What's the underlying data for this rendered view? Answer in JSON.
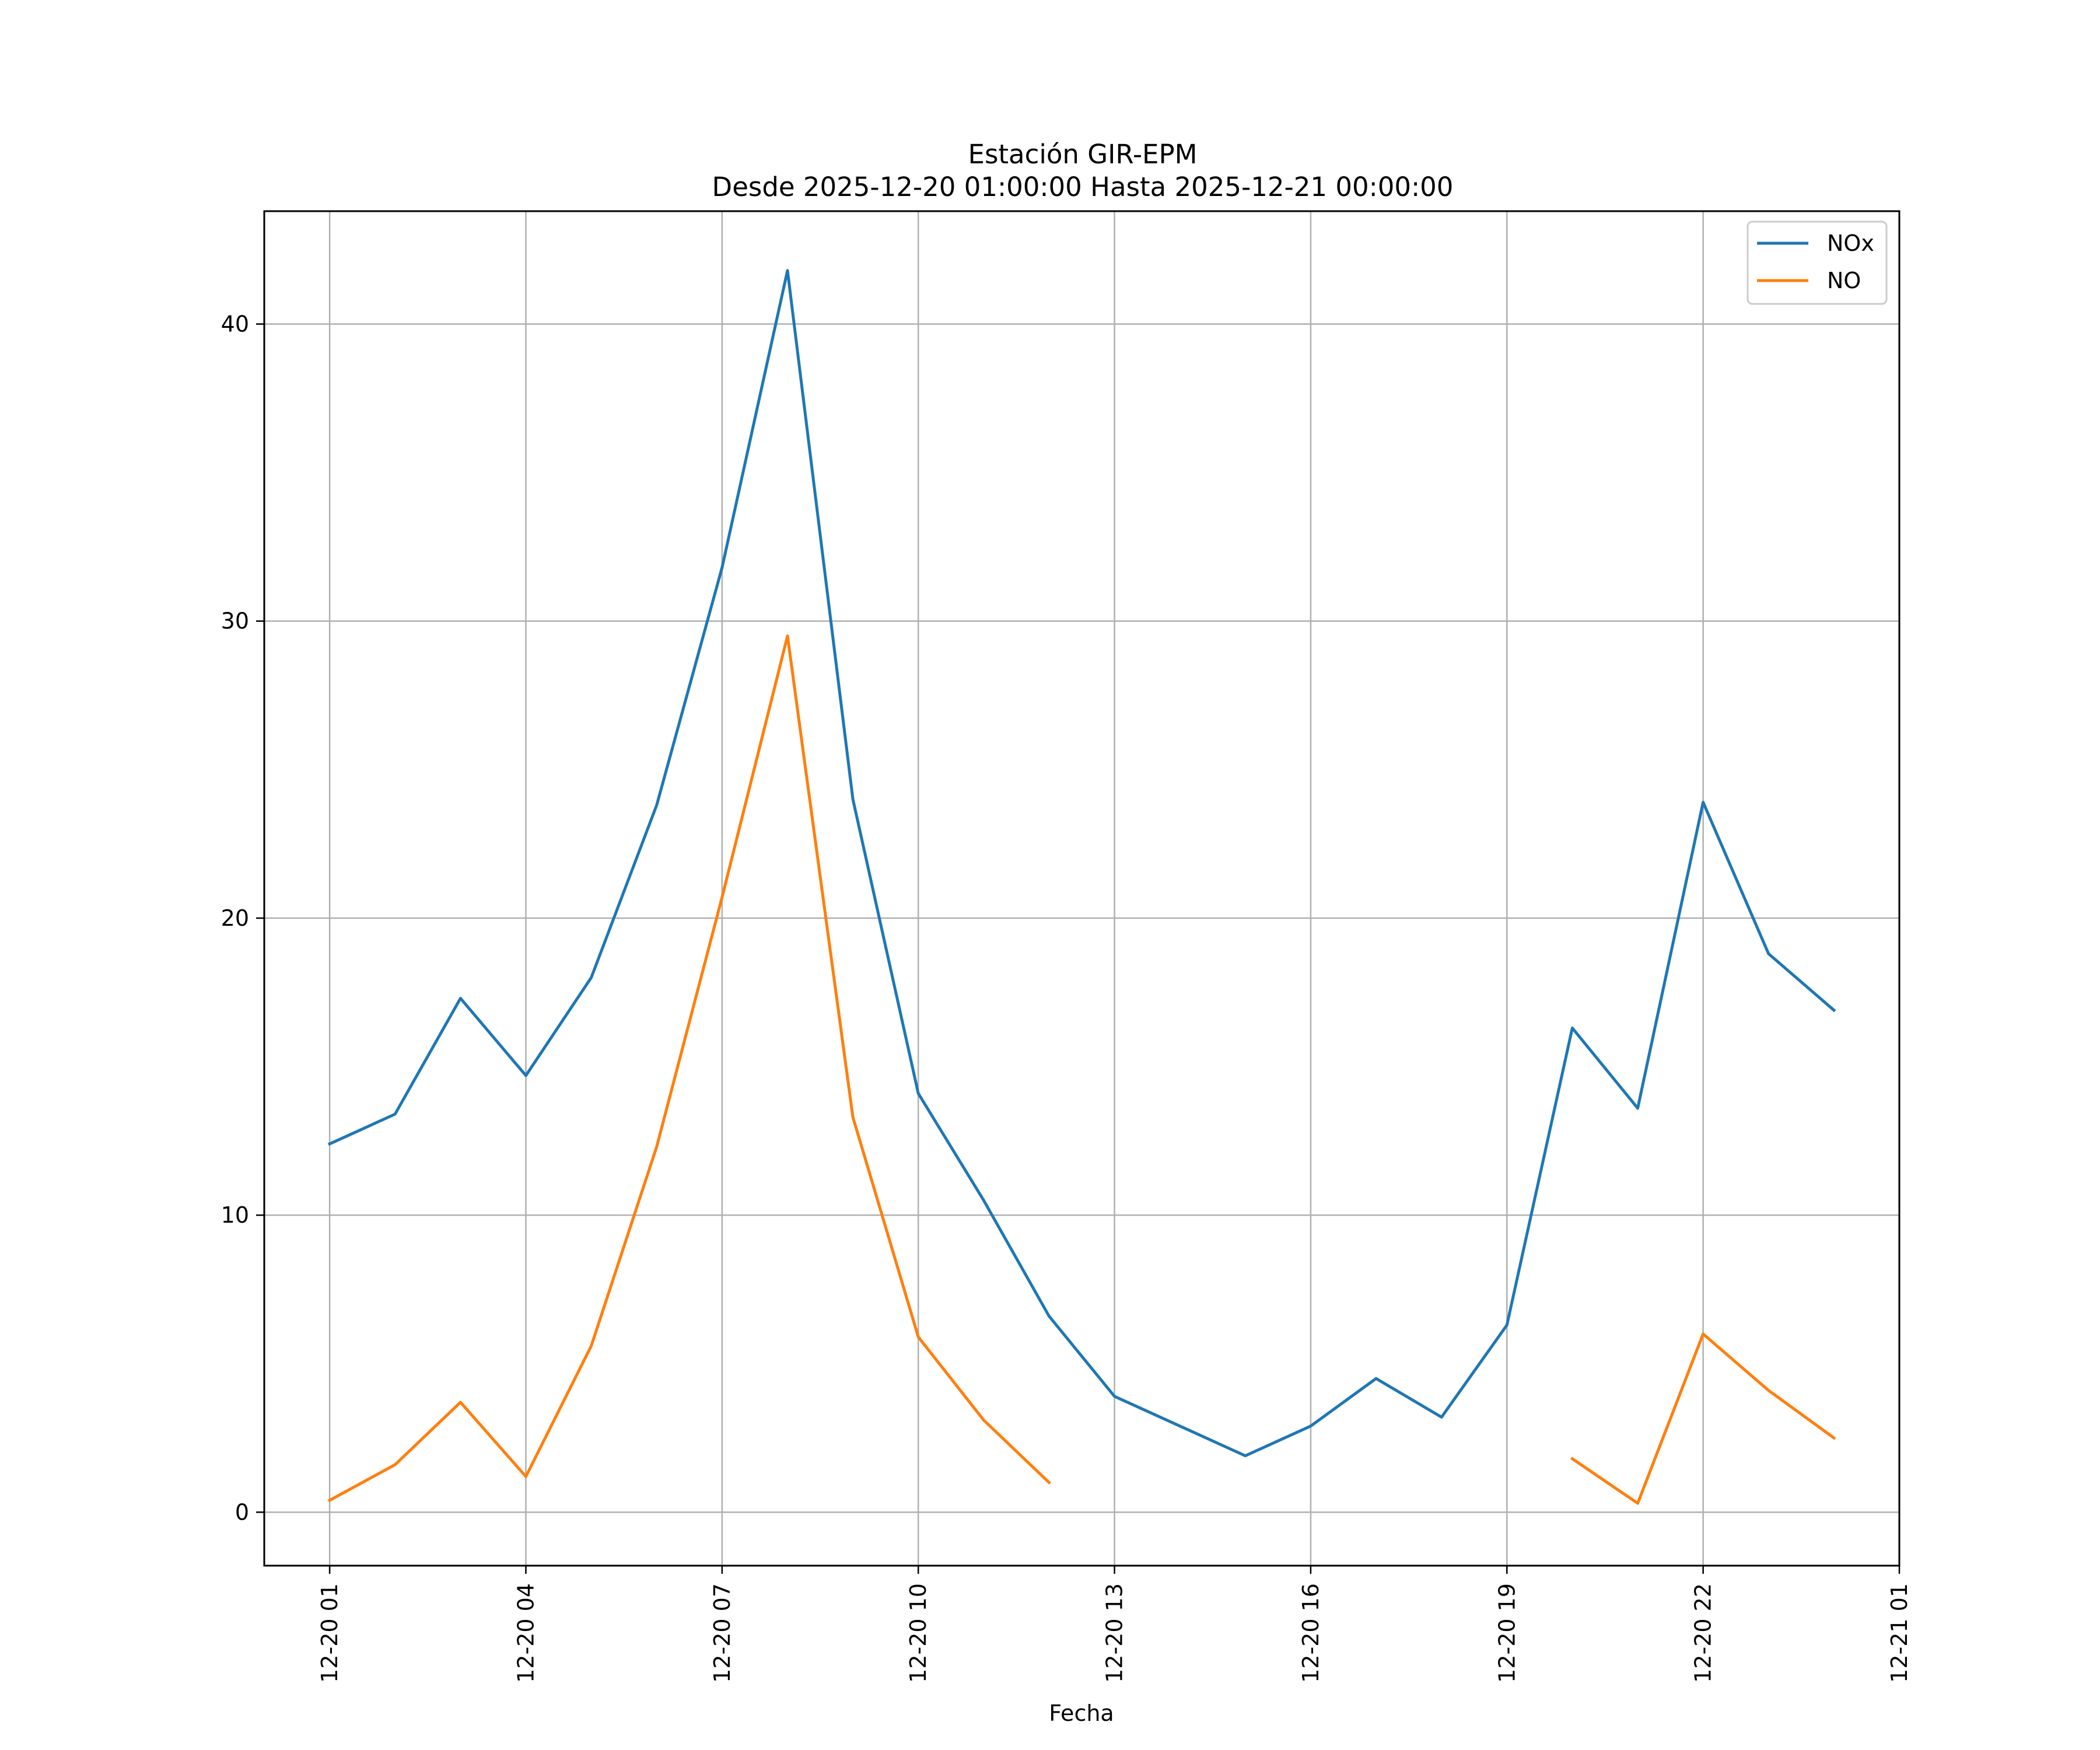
{
  "chart_data": {
    "type": "line",
    "title": "Estación GIR-EPM",
    "subtitle": "Desde 2025-12-20 01:00:00 Hasta 2025-12-21 00:00:00",
    "xlabel": "Fecha",
    "ylabel": "",
    "x": [
      "2025-12-20 01:00",
      "2025-12-20 02:00",
      "2025-12-20 03:00",
      "2025-12-20 04:00",
      "2025-12-20 05:00",
      "2025-12-20 06:00",
      "2025-12-20 07:00",
      "2025-12-20 08:00",
      "2025-12-20 09:00",
      "2025-12-20 10:00",
      "2025-12-20 11:00",
      "2025-12-20 12:00",
      "2025-12-20 13:00",
      "2025-12-20 14:00",
      "2025-12-20 15:00",
      "2025-12-20 16:00",
      "2025-12-20 17:00",
      "2025-12-20 18:00",
      "2025-12-20 19:00",
      "2025-12-20 20:00",
      "2025-12-20 21:00",
      "2025-12-20 22:00",
      "2025-12-20 23:00",
      "2025-12-21 00:00"
    ],
    "series": [
      {
        "name": "NOx",
        "color": "#1f77b4",
        "values": [
          12.4,
          13.4,
          17.3,
          14.7,
          18.0,
          23.8,
          31.8,
          41.8,
          24.0,
          14.1,
          10.5,
          6.6,
          3.9,
          2.9,
          1.9,
          2.9,
          4.5,
          3.2,
          6.3,
          16.3,
          13.6,
          23.9,
          18.8,
          16.9
        ]
      },
      {
        "name": "NO",
        "color": "#ff7f0e",
        "values": [
          0.4,
          1.6,
          3.7,
          1.2,
          5.6,
          12.3,
          20.7,
          29.5,
          13.3,
          5.9,
          3.1,
          1.0,
          null,
          null,
          null,
          null,
          null,
          null,
          null,
          1.8,
          0.3,
          6.0,
          4.1,
          2.5
        ]
      }
    ],
    "xticks": [
      "12-20 01",
      "12-20 04",
      "12-20 07",
      "12-20 10",
      "12-20 13",
      "12-20 16",
      "12-20 19",
      "12-20 22",
      "12-21 01"
    ],
    "yticks": [
      "0",
      "10",
      "20",
      "30",
      "40"
    ],
    "xlim": [
      "2025-12-20 00:00",
      "2025-12-21 01:00"
    ],
    "ylim": [
      -1.8,
      43.8
    ],
    "grid": true,
    "legend_position": "upper right"
  }
}
